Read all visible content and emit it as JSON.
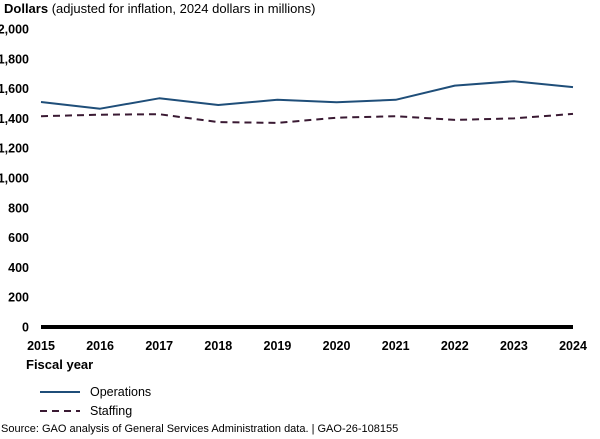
{
  "chart_data": {
    "type": "line",
    "ylabel_bold": "Dollars",
    "ylabel_rest": " (adjusted for inflation, 2024 dollars in millions)",
    "xlabel": "Fiscal year",
    "ylim": [
      0,
      2000
    ],
    "yticks": [
      "2,000",
      "1,800",
      "1,600",
      "1,400",
      "1,200",
      "1,000",
      "800",
      "600",
      "400",
      "200",
      "0"
    ],
    "ytick_values": [
      2000,
      1800,
      1600,
      1400,
      1200,
      1000,
      800,
      600,
      400,
      200,
      0
    ],
    "categories": [
      "2015",
      "2016",
      "2017",
      "2018",
      "2019",
      "2020",
      "2021",
      "2022",
      "2023",
      "2024"
    ],
    "series": [
      {
        "name": "Operations",
        "color": "#1f4e79",
        "dash": "solid",
        "values": [
          1510,
          1465,
          1535,
          1490,
          1525,
          1508,
          1525,
          1620,
          1650,
          1610
        ]
      },
      {
        "name": "Staffing",
        "color": "#3a1a33",
        "dash": "dashed",
        "values": [
          1415,
          1425,
          1428,
          1375,
          1370,
          1405,
          1415,
          1390,
          1400,
          1430
        ]
      }
    ]
  },
  "source": "Source: GAO analysis of General Services Administration data.  |  GAO-26-108155"
}
